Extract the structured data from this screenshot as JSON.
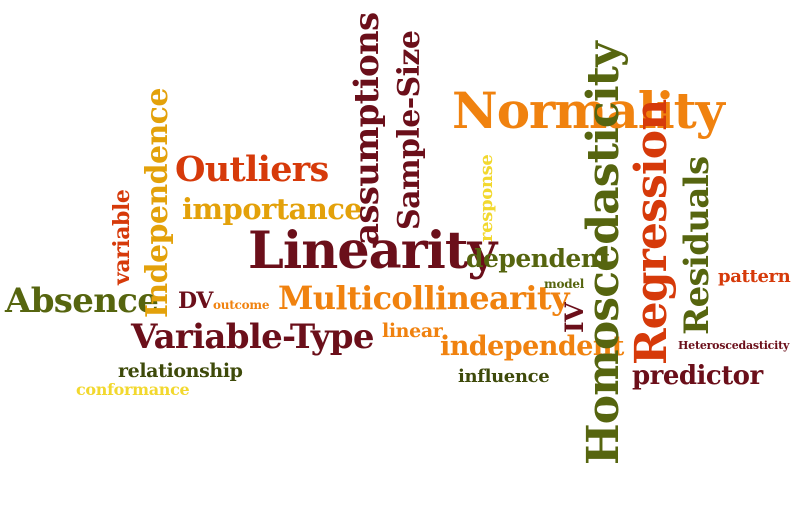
{
  "colors": {
    "orange": "#F0820F",
    "dark_red": "#6B0F1A",
    "red_orange": "#D63A0A",
    "olive": "#56650F",
    "gold": "#E3A10A",
    "yellow": "#F2D82E",
    "brown_red": "#A8250C",
    "dark_olive": "#3E4A0A"
  },
  "words": [
    {
      "text": "Normality",
      "color": "#F0820F"
    },
    {
      "text": "Linearity",
      "color": "#6B0F1A"
    },
    {
      "text": "Homoscedasticity",
      "color": "#56650F"
    },
    {
      "text": "Regression",
      "color": "#D63A0A"
    },
    {
      "text": "Residuals",
      "color": "#56650F"
    },
    {
      "text": "Multicollinearity",
      "color": "#F0820F"
    },
    {
      "text": "Variable-Type",
      "color": "#6B0F1A"
    },
    {
      "text": "Absence",
      "color": "#56650F"
    },
    {
      "text": "Outliers",
      "color": "#D63A0A"
    },
    {
      "text": "importance",
      "color": "#E3A10A"
    },
    {
      "text": "Independence",
      "color": "#E3A10A"
    },
    {
      "text": "variable",
      "color": "#D63A0A"
    },
    {
      "text": "assumptions",
      "color": "#6B0F1A"
    },
    {
      "text": "Sample-Size",
      "color": "#6B0F1A"
    },
    {
      "text": "response",
      "color": "#F2D82E"
    },
    {
      "text": "dependent",
      "color": "#56650F"
    },
    {
      "text": "model",
      "color": "#56650F"
    },
    {
      "text": "IV",
      "color": "#6B0F1A"
    },
    {
      "text": "pattern",
      "color": "#D63A0A"
    },
    {
      "text": "DV",
      "color": "#6B0F1A"
    },
    {
      "text": "outcome",
      "color": "#F0820F"
    },
    {
      "text": "linear",
      "color": "#F0820F"
    },
    {
      "text": "independent",
      "color": "#F0820F"
    },
    {
      "text": "Heteroscedasticity",
      "color": "#6B0F1A"
    },
    {
      "text": "predictor",
      "color": "#6B0F1A"
    },
    {
      "text": "relationship",
      "color": "#3E4A0A"
    },
    {
      "text": "conformance",
      "color": "#F2D82E"
    },
    {
      "text": "influence",
      "color": "#3E4A0A"
    }
  ]
}
